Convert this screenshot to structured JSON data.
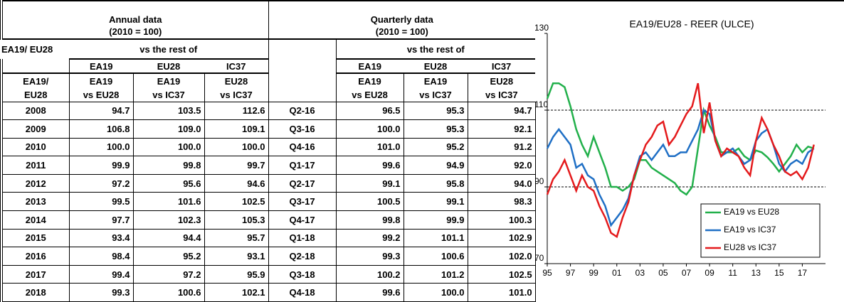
{
  "table": {
    "annual_title": "Annual data",
    "annual_base": "(2010 = 100)",
    "quarterly_title": "Quarterly data",
    "quarterly_base": "(2010 = 100)",
    "corner": "EA19/ EU28",
    "vs_label": [
      "vs the rest of",
      "vs the rest of"
    ],
    "group_headers": [
      [
        "EA19",
        "EU28",
        "IC37"
      ],
      [
        "EA19",
        "EU28",
        "IC37"
      ]
    ],
    "col_headers_1": [
      "EA19/",
      "EA19",
      "EA19",
      "EU28",
      "EA19",
      "EA19",
      "EU28"
    ],
    "col_headers_2": [
      "EU28",
      "vs EU28",
      "vs IC37",
      "vs IC37",
      "vs EU28",
      "vs IC37",
      "vs IC37"
    ],
    "rows": [
      [
        "2008",
        "94.7",
        "103.5",
        "112.6",
        "Q2-16",
        "96.5",
        "95.3",
        "94.7"
      ],
      [
        "2009",
        "106.8",
        "109.0",
        "109.1",
        "Q3-16",
        "100.0",
        "95.3",
        "92.1"
      ],
      [
        "2010",
        "100.0",
        "100.0",
        "100.0",
        "Q4-16",
        "101.0",
        "95.2",
        "91.2"
      ],
      [
        "2011",
        "99.9",
        "99.8",
        "99.7",
        "Q1-17",
        "99.6",
        "94.9",
        "92.0"
      ],
      [
        "2012",
        "97.2",
        "95.6",
        "94.6",
        "Q2-17",
        "99.1",
        "95.8",
        "94.0"
      ],
      [
        "2013",
        "99.5",
        "101.6",
        "102.5",
        "Q3-17",
        "100.5",
        "99.1",
        "98.3"
      ],
      [
        "2014",
        "97.7",
        "102.3",
        "105.3",
        "Q4-17",
        "99.8",
        "99.9",
        "100.3"
      ],
      [
        "2015",
        "93.4",
        "94.4",
        "95.7",
        "Q1-18",
        "99.2",
        "101.1",
        "102.9"
      ],
      [
        "2016",
        "98.4",
        "95.2",
        "93.1",
        "Q2-18",
        "99.3",
        "100.6",
        "102.0"
      ],
      [
        "2017",
        "99.4",
        "97.2",
        "95.9",
        "Q3-18",
        "100.2",
        "101.2",
        "102.5"
      ],
      [
        "2018",
        "99.3",
        "100.6",
        "102.1",
        "Q4-18",
        "99.6",
        "100.0",
        "101.0"
      ]
    ]
  },
  "chart_data": {
    "type": "line",
    "title": "EA19/EU28 - REER (ULCE)",
    "x": [
      1995,
      1995.5,
      1996,
      1996.5,
      1997,
      1997.5,
      1998,
      1998.5,
      1999,
      1999.5,
      2000,
      2000.5,
      2001,
      2001.5,
      2002,
      2002.5,
      2003,
      2003.5,
      2004,
      2004.5,
      2005,
      2005.5,
      2006,
      2006.5,
      2007,
      2007.5,
      2008,
      2008.5,
      2009,
      2009.5,
      2010,
      2010.5,
      2011,
      2011.5,
      2012,
      2012.5,
      2013,
      2013.5,
      2014,
      2014.5,
      2015,
      2015.5,
      2016,
      2016.5,
      2017,
      2017.5,
      2018
    ],
    "series": [
      {
        "name": "EA19 vs EU28",
        "color": "#22b04b",
        "values": [
          113,
          117,
          117,
          116,
          111,
          105,
          101,
          98,
          103,
          99,
          95,
          90,
          90,
          89,
          90,
          92,
          97,
          97,
          95,
          94,
          93,
          92,
          91,
          89,
          88,
          90,
          100,
          110,
          106,
          103,
          99,
          99,
          99,
          100,
          98,
          97,
          99.5,
          99,
          97.7,
          96,
          94,
          96,
          98,
          101,
          99,
          100.5,
          100
        ]
      },
      {
        "name": "EA19 vs IC37",
        "color": "#1f6fc5",
        "values": [
          100,
          103,
          105,
          103,
          101,
          95,
          96,
          93,
          92,
          88,
          85,
          80,
          82,
          84,
          87,
          93,
          98,
          99,
          97,
          99,
          101,
          98,
          98,
          99,
          99,
          102,
          105,
          110,
          109,
          102,
          98,
          99,
          100,
          98,
          96,
          97,
          102,
          104,
          105,
          101,
          96,
          94,
          96,
          97,
          96,
          99,
          100
        ]
      },
      {
        "name": "EU28 vs IC37",
        "color": "#e41a1c",
        "values": [
          88,
          92,
          94,
          97,
          93,
          89,
          93,
          90,
          89,
          85,
          82,
          78,
          77,
          82,
          86,
          93,
          97,
          101,
          103,
          106,
          107,
          101,
          103,
          106,
          109,
          111,
          117,
          104,
          112,
          102,
          98,
          100,
          99,
          98,
          95,
          93,
          102,
          108,
          105,
          101,
          98,
          94,
          93,
          94,
          92,
          95,
          101
        ]
      }
    ],
    "xlim": [
      1995,
      2019
    ],
    "xticks": [
      {
        "value": 1995,
        "label": "95"
      },
      {
        "value": 1997,
        "label": "97"
      },
      {
        "value": 1999,
        "label": "99"
      },
      {
        "value": 2001,
        "label": "01"
      },
      {
        "value": 2003,
        "label": "03"
      },
      {
        "value": 2005,
        "label": "05"
      },
      {
        "value": 2007,
        "label": "07"
      },
      {
        "value": 2009,
        "label": "09"
      },
      {
        "value": 2011,
        "label": "11"
      },
      {
        "value": 2013,
        "label": "13"
      },
      {
        "value": 2015,
        "label": "15"
      },
      {
        "value": 2017,
        "label": "17"
      }
    ],
    "ylim": [
      70,
      130
    ],
    "yticks": [
      70,
      90,
      110,
      130
    ],
    "grid": true,
    "legend": "lower right"
  }
}
